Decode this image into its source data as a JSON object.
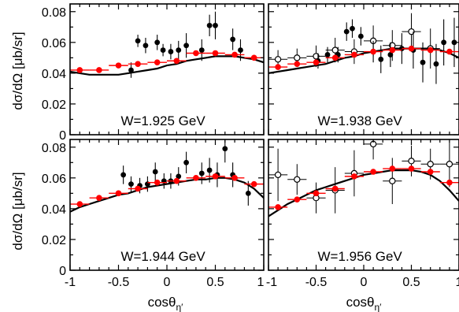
{
  "chart_data": {
    "type": "scatter",
    "layout": "2x2 grid, shared axes",
    "xlabel": "cosθη′",
    "xlabel_main": "cosθ",
    "xlabel_sub": "η′",
    "ylabel": "dσ/dΩ [μb/sr]",
    "xlim": [
      -1,
      1
    ],
    "ylim": [
      0,
      0.085
    ],
    "x_ticks": [
      "-1",
      "-0.5",
      "0",
      "0.5",
      "1"
    ],
    "y_ticks": [
      "0",
      "0.02",
      "0.04",
      "0.06",
      "0.08"
    ],
    "colors": {
      "red_series": "#ff0000",
      "black_series": "#000000",
      "curve": "#000000"
    },
    "panels": [
      {
        "label": "W=1.925 GeV",
        "filled_black": [
          {
            "x": -0.37,
            "y": 0.042,
            "dy": 0.005
          },
          {
            "x": -0.3,
            "y": 0.061,
            "dy": 0.004
          },
          {
            "x": -0.22,
            "y": 0.058,
            "dy": 0.005
          },
          {
            "x": -0.1,
            "y": 0.06,
            "dy": 0.005
          },
          {
            "x": -0.04,
            "y": 0.055,
            "dy": 0.004
          },
          {
            "x": 0.04,
            "y": 0.054,
            "dy": 0.005
          },
          {
            "x": 0.12,
            "y": 0.055,
            "dy": 0.006
          },
          {
            "x": 0.2,
            "y": 0.058,
            "dy": 0.008
          },
          {
            "x": 0.36,
            "y": 0.055,
            "dy": 0.007
          },
          {
            "x": 0.44,
            "y": 0.071,
            "dy": 0.007
          },
          {
            "x": 0.5,
            "y": 0.071,
            "dy": 0.009
          },
          {
            "x": 0.68,
            "y": 0.062,
            "dy": 0.007
          },
          {
            "x": 0.76,
            "y": 0.055,
            "dy": 0.007
          }
        ],
        "open_black": [],
        "red": [
          {
            "x": -0.9,
            "y": 0.042,
            "dx": 0.1,
            "dy": 0.0015
          },
          {
            "x": -0.7,
            "y": 0.042,
            "dx": 0.1,
            "dy": 0.0015
          },
          {
            "x": -0.5,
            "y": 0.045,
            "dx": 0.1,
            "dy": 0.0015
          },
          {
            "x": -0.3,
            "y": 0.046,
            "dx": 0.1,
            "dy": 0.0015
          },
          {
            "x": -0.1,
            "y": 0.047,
            "dx": 0.1,
            "dy": 0.0015
          },
          {
            "x": 0.1,
            "y": 0.048,
            "dx": 0.1,
            "dy": 0.0015
          },
          {
            "x": 0.3,
            "y": 0.053,
            "dx": 0.1,
            "dy": 0.0015
          },
          {
            "x": 0.5,
            "y": 0.053,
            "dx": 0.1,
            "dy": 0.0015
          },
          {
            "x": 0.7,
            "y": 0.052,
            "dx": 0.1,
            "dy": 0.0015
          },
          {
            "x": 0.9,
            "y": 0.05,
            "dx": 0.1,
            "dy": 0.0015
          }
        ],
        "curve": {
          "x": [
            -1,
            -0.9,
            -0.8,
            -0.7,
            -0.6,
            -0.5,
            -0.4,
            -0.3,
            -0.2,
            -0.1,
            0,
            0.1,
            0.2,
            0.3,
            0.4,
            0.5,
            0.6,
            0.7,
            0.8,
            0.9,
            1
          ],
          "y": [
            0.041,
            0.04,
            0.039,
            0.039,
            0.039,
            0.039,
            0.04,
            0.041,
            0.042,
            0.043,
            0.045,
            0.046,
            0.048,
            0.049,
            0.05,
            0.051,
            0.051,
            0.051,
            0.05,
            0.049,
            0.047
          ]
        }
      },
      {
        "label": "W=1.938 GeV",
        "filled_black": [
          {
            "x": -0.48,
            "y": 0.048,
            "dy": 0.005
          },
          {
            "x": -0.38,
            "y": 0.052,
            "dy": 0.005
          },
          {
            "x": -0.27,
            "y": 0.052,
            "dy": 0.005
          },
          {
            "x": -0.18,
            "y": 0.067,
            "dy": 0.006
          },
          {
            "x": -0.12,
            "y": 0.069,
            "dy": 0.006
          },
          {
            "x": -0.03,
            "y": 0.064,
            "dy": 0.006
          },
          {
            "x": 0.1,
            "y": 0.054,
            "dy": 0.007
          },
          {
            "x": 0.18,
            "y": 0.049,
            "dy": 0.009
          },
          {
            "x": 0.28,
            "y": 0.052,
            "dy": 0.008
          },
          {
            "x": 0.4,
            "y": 0.056,
            "dy": 0.01
          },
          {
            "x": 0.52,
            "y": 0.055,
            "dy": 0.012
          },
          {
            "x": 0.62,
            "y": 0.047,
            "dy": 0.013
          },
          {
            "x": 0.76,
            "y": 0.046,
            "dy": 0.013
          },
          {
            "x": 0.84,
            "y": 0.06,
            "dy": 0.015
          },
          {
            "x": 0.95,
            "y": 0.06,
            "dy": 0.016
          }
        ],
        "open_black": [
          {
            "x": -0.9,
            "y": 0.049,
            "dx": 0.1,
            "dy": 0.006
          },
          {
            "x": -0.7,
            "y": 0.05,
            "dx": 0.1,
            "dy": 0.006
          },
          {
            "x": -0.5,
            "y": 0.051,
            "dx": 0.1,
            "dy": 0.007
          },
          {
            "x": -0.3,
            "y": 0.055,
            "dx": 0.1,
            "dy": 0.008
          },
          {
            "x": -0.1,
            "y": 0.054,
            "dx": 0.1,
            "dy": 0.008
          },
          {
            "x": 0.1,
            "y": 0.061,
            "dx": 0.1,
            "dy": 0.01
          },
          {
            "x": 0.3,
            "y": 0.058,
            "dx": 0.1,
            "dy": 0.01
          },
          {
            "x": 0.5,
            "y": 0.067,
            "dx": 0.1,
            "dy": 0.012
          },
          {
            "x": 0.7,
            "y": 0.056,
            "dx": 0.1,
            "dy": 0.013
          }
        ],
        "red": [
          {
            "x": -0.9,
            "y": 0.044,
            "dx": 0.1,
            "dy": 0.0015
          },
          {
            "x": -0.7,
            "y": 0.046,
            "dx": 0.1,
            "dy": 0.0015
          },
          {
            "x": -0.5,
            "y": 0.047,
            "dx": 0.1,
            "dy": 0.0015
          },
          {
            "x": -0.3,
            "y": 0.05,
            "dx": 0.1,
            "dy": 0.0015
          },
          {
            "x": -0.1,
            "y": 0.052,
            "dx": 0.1,
            "dy": 0.0015
          },
          {
            "x": 0.1,
            "y": 0.054,
            "dx": 0.1,
            "dy": 0.0015
          },
          {
            "x": 0.3,
            "y": 0.055,
            "dx": 0.1,
            "dy": 0.0015
          },
          {
            "x": 0.5,
            "y": 0.056,
            "dx": 0.1,
            "dy": 0.0015
          },
          {
            "x": 0.7,
            "y": 0.055,
            "dx": 0.1,
            "dy": 0.0015
          },
          {
            "x": 0.9,
            "y": 0.054,
            "dx": 0.1,
            "dy": 0.0015
          }
        ],
        "curve": {
          "x": [
            -1,
            -0.9,
            -0.8,
            -0.7,
            -0.6,
            -0.5,
            -0.4,
            -0.3,
            -0.2,
            -0.1,
            0,
            0.1,
            0.2,
            0.3,
            0.4,
            0.5,
            0.6,
            0.7,
            0.8,
            0.9,
            1
          ],
          "y": [
            0.04,
            0.041,
            0.042,
            0.043,
            0.044,
            0.045,
            0.046,
            0.048,
            0.05,
            0.051,
            0.053,
            0.054,
            0.055,
            0.056,
            0.056,
            0.056,
            0.056,
            0.056,
            0.055,
            0.053,
            0.05
          ]
        }
      },
      {
        "label": "W=1.944 GeV",
        "filled_black": [
          {
            "x": -0.45,
            "y": 0.062,
            "dy": 0.006
          },
          {
            "x": -0.37,
            "y": 0.056,
            "dy": 0.005
          },
          {
            "x": -0.28,
            "y": 0.055,
            "dy": 0.005
          },
          {
            "x": -0.2,
            "y": 0.056,
            "dy": 0.005
          },
          {
            "x": -0.12,
            "y": 0.064,
            "dy": 0.006
          },
          {
            "x": -0.03,
            "y": 0.058,
            "dy": 0.005
          },
          {
            "x": 0.04,
            "y": 0.058,
            "dy": 0.005
          },
          {
            "x": 0.12,
            "y": 0.061,
            "dy": 0.006
          },
          {
            "x": 0.2,
            "y": 0.07,
            "dy": 0.007
          },
          {
            "x": 0.36,
            "y": 0.063,
            "dy": 0.007
          },
          {
            "x": 0.44,
            "y": 0.065,
            "dy": 0.008
          },
          {
            "x": 0.52,
            "y": 0.062,
            "dy": 0.008
          },
          {
            "x": 0.6,
            "y": 0.079,
            "dy": 0.009
          },
          {
            "x": 0.68,
            "y": 0.062,
            "dy": 0.008
          },
          {
            "x": 0.84,
            "y": 0.05,
            "dy": 0.008
          }
        ],
        "open_black": [],
        "red": [
          {
            "x": -0.9,
            "y": 0.043,
            "dx": 0.1,
            "dy": 0.0015
          },
          {
            "x": -0.7,
            "y": 0.047,
            "dx": 0.1,
            "dy": 0.0015
          },
          {
            "x": -0.5,
            "y": 0.05,
            "dx": 0.1,
            "dy": 0.0015
          },
          {
            "x": -0.3,
            "y": 0.053,
            "dx": 0.1,
            "dy": 0.0015
          },
          {
            "x": -0.1,
            "y": 0.057,
            "dx": 0.1,
            "dy": 0.0015
          },
          {
            "x": 0.1,
            "y": 0.058,
            "dx": 0.1,
            "dy": 0.0015
          },
          {
            "x": 0.3,
            "y": 0.06,
            "dx": 0.1,
            "dy": 0.0015
          },
          {
            "x": 0.5,
            "y": 0.061,
            "dx": 0.1,
            "dy": 0.0015
          },
          {
            "x": 0.7,
            "y": 0.06,
            "dx": 0.1,
            "dy": 0.0015
          },
          {
            "x": 0.9,
            "y": 0.056,
            "dx": 0.1,
            "dy": 0.0015
          }
        ],
        "curve": {
          "x": [
            -1,
            -0.9,
            -0.8,
            -0.7,
            -0.6,
            -0.5,
            -0.4,
            -0.3,
            -0.2,
            -0.1,
            0,
            0.1,
            0.2,
            0.3,
            0.4,
            0.5,
            0.6,
            0.7,
            0.8,
            0.9,
            1
          ],
          "y": [
            0.038,
            0.041,
            0.043,
            0.045,
            0.047,
            0.049,
            0.05,
            0.052,
            0.054,
            0.055,
            0.056,
            0.057,
            0.058,
            0.059,
            0.059,
            0.06,
            0.06,
            0.059,
            0.057,
            0.053,
            0.047
          ]
        }
      },
      {
        "label": "W=1.956 GeV",
        "filled_black": [],
        "open_black": [
          {
            "x": -0.9,
            "y": 0.062,
            "dx": 0.1,
            "dy": 0.017
          },
          {
            "x": -0.7,
            "y": 0.059,
            "dx": 0.1,
            "dy": 0.01
          },
          {
            "x": -0.5,
            "y": 0.047,
            "dx": 0.1,
            "dy": 0.01
          },
          {
            "x": -0.3,
            "y": 0.052,
            "dx": 0.1,
            "dy": 0.015
          },
          {
            "x": -0.1,
            "y": 0.063,
            "dx": 0.1,
            "dy": 0.015
          },
          {
            "x": 0.1,
            "y": 0.082,
            "dx": 0.1,
            "dy": 0.01
          },
          {
            "x": 0.3,
            "y": 0.058,
            "dx": 0.1,
            "dy": 0.015
          },
          {
            "x": 0.5,
            "y": 0.071,
            "dx": 0.1,
            "dy": 0.01
          },
          {
            "x": 0.7,
            "y": 0.069,
            "dx": 0.1,
            "dy": 0.01
          },
          {
            "x": 0.9,
            "y": 0.069,
            "dx": 0.1,
            "dy": 0.015
          }
        ],
        "red": [
          {
            "x": -0.9,
            "y": 0.041,
            "dx": 0.1,
            "dy": 0.0015
          },
          {
            "x": -0.7,
            "y": 0.046,
            "dx": 0.1,
            "dy": 0.0015
          },
          {
            "x": -0.5,
            "y": 0.05,
            "dx": 0.1,
            "dy": 0.0015
          },
          {
            "x": -0.3,
            "y": 0.053,
            "dx": 0.1,
            "dy": 0.0015
          },
          {
            "x": -0.1,
            "y": 0.061,
            "dx": 0.1,
            "dy": 0.0015
          },
          {
            "x": 0.1,
            "y": 0.064,
            "dx": 0.1,
            "dy": 0.0015
          },
          {
            "x": 0.3,
            "y": 0.066,
            "dx": 0.1,
            "dy": 0.0015
          },
          {
            "x": 0.5,
            "y": 0.066,
            "dx": 0.1,
            "dy": 0.0015
          },
          {
            "x": 0.7,
            "y": 0.064,
            "dx": 0.1,
            "dy": 0.0015
          },
          {
            "x": 0.9,
            "y": 0.057,
            "dx": 0.1,
            "dy": 0.0015
          }
        ],
        "curve": {
          "x": [
            -1,
            -0.9,
            -0.8,
            -0.7,
            -0.6,
            -0.5,
            -0.4,
            -0.3,
            -0.2,
            -0.1,
            0,
            0.1,
            0.2,
            0.3,
            0.4,
            0.5,
            0.6,
            0.7,
            0.8,
            0.9,
            1
          ],
          "y": [
            0.035,
            0.039,
            0.043,
            0.046,
            0.049,
            0.052,
            0.054,
            0.056,
            0.058,
            0.06,
            0.062,
            0.063,
            0.064,
            0.065,
            0.065,
            0.065,
            0.064,
            0.062,
            0.058,
            0.052,
            0.045
          ]
        }
      }
    ]
  }
}
